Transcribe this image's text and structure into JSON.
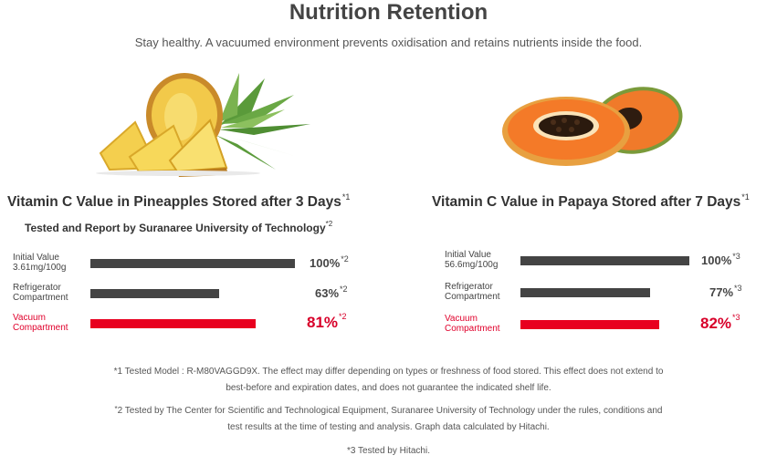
{
  "header": {
    "title": "Nutrition Retention",
    "subtitle": "Stay healthy. A vacuumed environment prevents oxidisation and retains nutrients inside the food."
  },
  "images": {
    "left": "pineapple-image",
    "right": "papaya-image"
  },
  "colors": {
    "dark_bar": "#444444",
    "vacuum_bar": "#e8001f",
    "vacuum_text": "#e0002b"
  },
  "chart_data": [
    {
      "type": "bar",
      "orientation": "horizontal",
      "title": "Vitamin C Value in Pineapples Stored after 3 Days",
      "title_note": "*1",
      "subtitle": "Tested and Report by Suranaree University of Technology",
      "subtitle_note": "*2",
      "categories": [
        "Initial Value\n3.61mg/100g",
        "Refrigerator\nCompartment",
        "Vacuum\nCompartment"
      ],
      "values": [
        100,
        63,
        81
      ],
      "value_labels": [
        "100%",
        "63%",
        "81%"
      ],
      "value_notes": [
        "*2",
        "*2",
        "*2"
      ],
      "xlim": [
        0,
        100
      ]
    },
    {
      "type": "bar",
      "orientation": "horizontal",
      "title": "Vitamin C Value in Papaya Stored after 7 Days",
      "title_note": "*1",
      "categories": [
        "Initial Value\n56.6mg/100g",
        "Refrigerator\nCompartment",
        "Vacuum\nCompartment"
      ],
      "values": [
        100,
        77,
        82
      ],
      "value_labels": [
        "100%",
        "77%",
        "82%"
      ],
      "value_notes": [
        "*3",
        "*3",
        "*3"
      ],
      "xlim": [
        0,
        100
      ]
    }
  ],
  "footnotes": {
    "n1_line1": "*1 Tested Model : R-M80VAGGD9X. The effect may differ depending on types or freshness of food stored. This effect does not extend to",
    "n1_line2": "best-before and expiration dates, and does not guarantee the indicated shelf life.",
    "n2_mark": "*",
    "n2_line1": "2 Tested by The Center for Scientific and Technological Equipment, Suranaree University of Technology under the rules, conditions and",
    "n2_line2": "test results at the time of testing and analysis. Graph data calculated by Hitachi.",
    "n3": "*3 Tested by Hitachi."
  }
}
